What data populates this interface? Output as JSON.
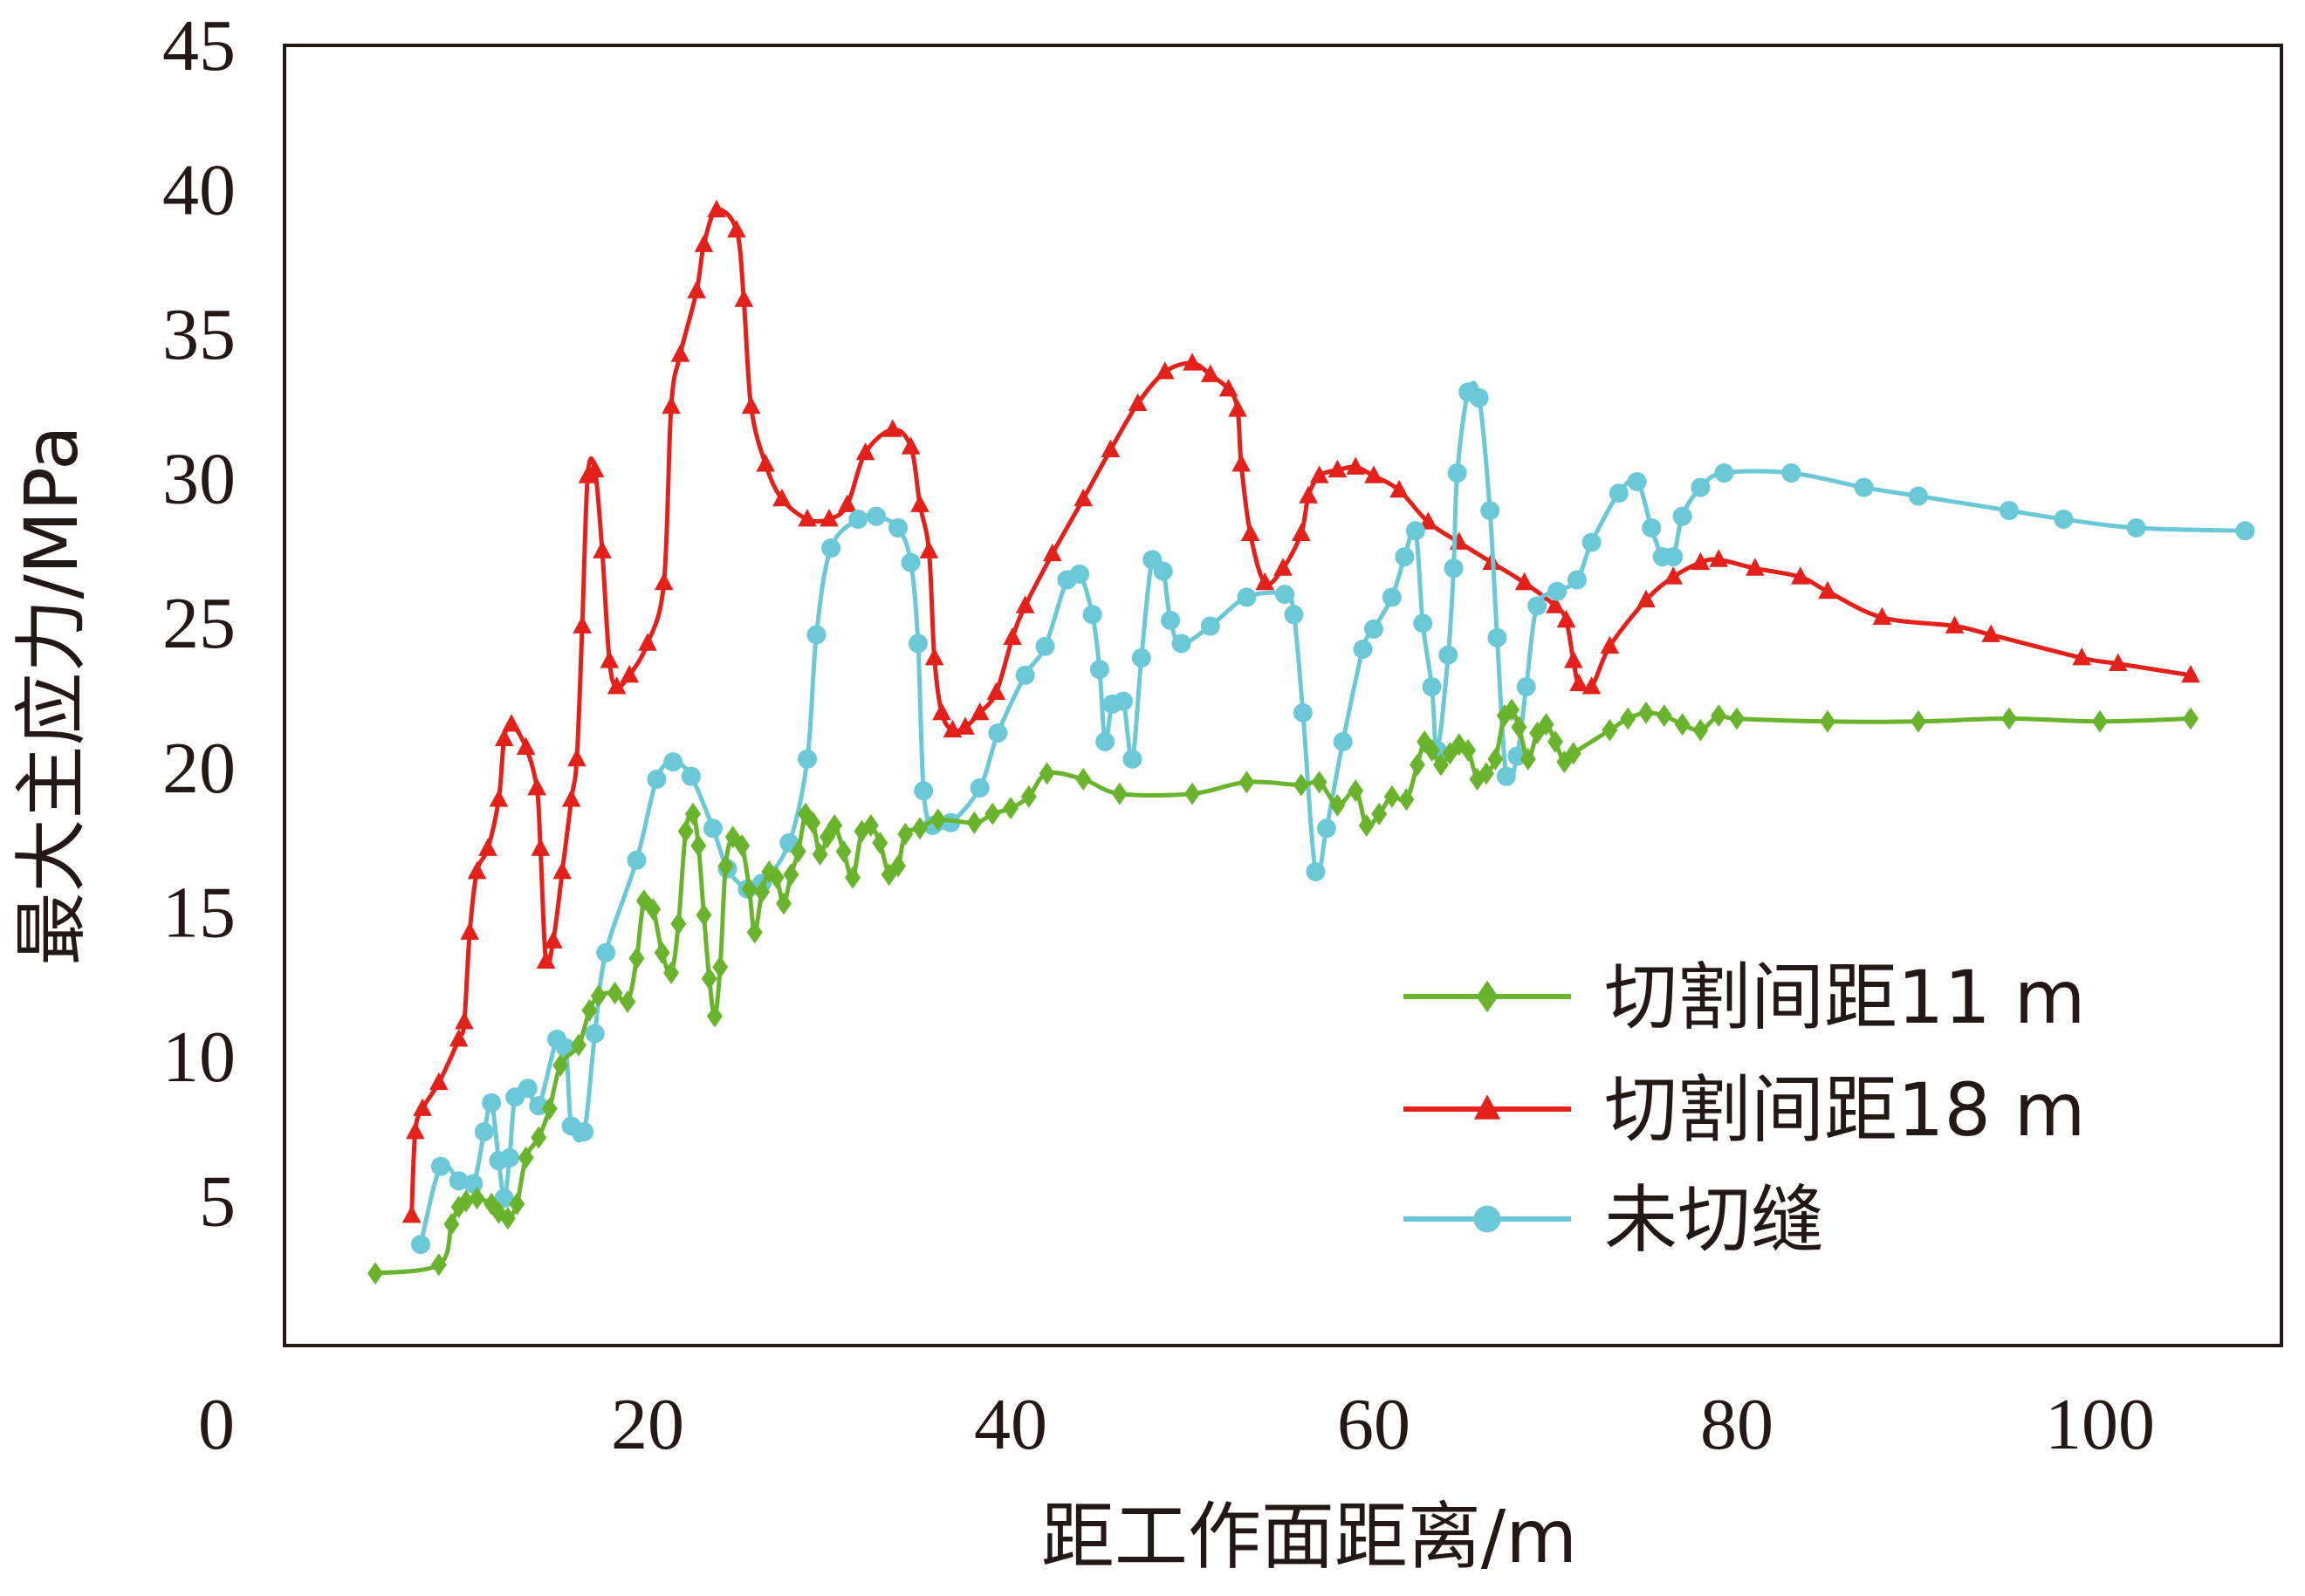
{
  "chart_data": {
    "type": "line",
    "title": "",
    "xlabel": "距工作面距离/m",
    "ylabel": "最大主应力/MPa",
    "xlim": [
      0,
      110
    ],
    "ylim": [
      0,
      45
    ],
    "x_ticks": [
      0,
      20,
      40,
      60,
      80,
      100
    ],
    "y_ticks": [
      5,
      10,
      15,
      20,
      25,
      30,
      35,
      40,
      45
    ],
    "grid": false,
    "legend_position": "lower-right",
    "series": [
      {
        "name": "切割间距11 m",
        "color": "#6ab42d",
        "marker": "diamond",
        "points": [
          [
            5,
            2.5
          ],
          [
            8.5,
            2.8
          ],
          [
            9.2,
            4.2
          ],
          [
            9.6,
            4.8
          ],
          [
            10,
            5.0
          ],
          [
            10.6,
            5.1
          ],
          [
            11.4,
            4.9
          ],
          [
            11.8,
            4.6
          ],
          [
            12.3,
            4.4
          ],
          [
            12.8,
            4.9
          ],
          [
            13.3,
            6.5
          ],
          [
            14,
            7.2
          ],
          [
            14.6,
            8.2
          ],
          [
            15.2,
            9.7
          ],
          [
            16.2,
            10.4
          ],
          [
            16.8,
            11.6
          ],
          [
            17.3,
            12.1
          ],
          [
            18.2,
            12.2
          ],
          [
            18.9,
            11.9
          ],
          [
            19.4,
            13.4
          ],
          [
            19.8,
            15.4
          ],
          [
            20.3,
            15.1
          ],
          [
            20.8,
            13.6
          ],
          [
            21.3,
            12.9
          ],
          [
            21.7,
            14.6
          ],
          [
            22.1,
            17.8
          ],
          [
            22.5,
            18.4
          ],
          [
            22.8,
            17.3
          ],
          [
            23.1,
            14.9
          ],
          [
            23.4,
            12.7
          ],
          [
            23.7,
            11.4
          ],
          [
            24,
            13.1
          ],
          [
            24.3,
            16.6
          ],
          [
            24.7,
            17.6
          ],
          [
            25.2,
            17.3
          ],
          [
            25.6,
            15.8
          ],
          [
            25.9,
            14.3
          ],
          [
            26.3,
            15.7
          ],
          [
            26.7,
            16.4
          ],
          [
            27.1,
            16.2
          ],
          [
            27.5,
            15.3
          ],
          [
            27.9,
            16.3
          ],
          [
            28.3,
            17.1
          ],
          [
            28.7,
            18.4
          ],
          [
            29.1,
            18.1
          ],
          [
            29.5,
            17.0
          ],
          [
            29.9,
            17.6
          ],
          [
            30.3,
            18.0
          ],
          [
            30.8,
            17.1
          ],
          [
            31.3,
            16.2
          ],
          [
            31.8,
            17.8
          ],
          [
            32.3,
            18.0
          ],
          [
            32.8,
            17.4
          ],
          [
            33.3,
            16.3
          ],
          [
            33.8,
            16.6
          ],
          [
            34.2,
            17.7
          ],
          [
            35,
            17.9
          ],
          [
            36,
            18.2
          ],
          [
            38,
            18.1
          ],
          [
            39,
            18.4
          ],
          [
            40,
            18.6
          ],
          [
            41,
            19.0
          ],
          [
            42,
            19.8
          ],
          [
            44,
            19.6
          ],
          [
            46,
            19.1
          ],
          [
            50,
            19.1
          ],
          [
            53,
            19.5
          ],
          [
            56,
            19.4
          ],
          [
            57,
            19.5
          ],
          [
            58,
            18.7
          ],
          [
            59,
            19.2
          ],
          [
            59.6,
            18.0
          ],
          [
            60.3,
            18.4
          ],
          [
            61,
            19.0
          ],
          [
            61.8,
            18.9
          ],
          [
            62.4,
            20.1
          ],
          [
            62.8,
            20.9
          ],
          [
            63.2,
            20.6
          ],
          [
            63.7,
            20.1
          ],
          [
            64.2,
            20.5
          ],
          [
            64.7,
            20.8
          ],
          [
            65.2,
            20.6
          ],
          [
            65.7,
            19.6
          ],
          [
            66.2,
            19.8
          ],
          [
            66.7,
            20.3
          ],
          [
            67.2,
            21.8
          ],
          [
            67.6,
            22.0
          ],
          [
            68.0,
            21.4
          ],
          [
            68.5,
            20.3
          ],
          [
            69,
            21.2
          ],
          [
            69.5,
            21.5
          ],
          [
            70,
            20.9
          ],
          [
            70.5,
            20.2
          ],
          [
            71,
            20.5
          ],
          [
            73,
            21.3
          ],
          [
            74,
            21.7
          ],
          [
            75,
            21.9
          ],
          [
            76,
            21.8
          ],
          [
            77,
            21.5
          ],
          [
            78,
            21.3
          ],
          [
            79,
            21.8
          ],
          [
            80,
            21.7
          ],
          [
            85,
            21.6
          ],
          [
            90,
            21.6
          ],
          [
            95,
            21.7
          ],
          [
            100,
            21.6
          ],
          [
            105,
            21.7
          ]
        ]
      },
      {
        "name": "切割间距18 m",
        "color": "#e4201b",
        "marker": "triangle",
        "points": [
          [
            7,
            4.5
          ],
          [
            7.2,
            7.4
          ],
          [
            7.6,
            8.2
          ],
          [
            8.5,
            9.1
          ],
          [
            9.6,
            10.6
          ],
          [
            9.9,
            11.2
          ],
          [
            10.2,
            14.3
          ],
          [
            10.6,
            16.4
          ],
          [
            11.2,
            17.2
          ],
          [
            11.8,
            18.9
          ],
          [
            12.1,
            21.0
          ],
          [
            12.5,
            21.5
          ],
          [
            13.3,
            20.7
          ],
          [
            13.9,
            19.3
          ],
          [
            14.1,
            17.2
          ],
          [
            14.4,
            13.3
          ],
          [
            14.8,
            14.0
          ],
          [
            15.3,
            16.4
          ],
          [
            15.8,
            18.9
          ],
          [
            16.1,
            20.3
          ],
          [
            16.4,
            24.9
          ],
          [
            16.7,
            30.1
          ],
          [
            17.1,
            30.3
          ],
          [
            17.5,
            27.5
          ],
          [
            17.9,
            23.7
          ],
          [
            18.3,
            22.8
          ],
          [
            19,
            23.2
          ],
          [
            20,
            24.3
          ],
          [
            20.9,
            26.4
          ],
          [
            21.3,
            32.5
          ],
          [
            21.8,
            34.3
          ],
          [
            22.7,
            36.5
          ],
          [
            23.1,
            38.1
          ],
          [
            23.8,
            39.3
          ],
          [
            24.9,
            38.6
          ],
          [
            25.3,
            36.2
          ],
          [
            25.7,
            32.5
          ],
          [
            26.5,
            30.5
          ],
          [
            27.4,
            29.3
          ],
          [
            28.8,
            28.6
          ],
          [
            30,
            28.6
          ],
          [
            31,
            29.1
          ],
          [
            32,
            30.9
          ],
          [
            33.5,
            31.7
          ],
          [
            34.5,
            31.1
          ],
          [
            35,
            29.1
          ],
          [
            35.5,
            27.5
          ],
          [
            35.8,
            23.8
          ],
          [
            36.2,
            21.9
          ],
          [
            36.8,
            21.3
          ],
          [
            37.5,
            21.4
          ],
          [
            38.3,
            21.9
          ],
          [
            39.2,
            22.6
          ],
          [
            40.1,
            24.5
          ],
          [
            40.8,
            25.6
          ],
          [
            42.3,
            27.4
          ],
          [
            44,
            29.3
          ],
          [
            45.5,
            31.0
          ],
          [
            47,
            32.6
          ],
          [
            48.5,
            33.7
          ],
          [
            50,
            34.0
          ],
          [
            51,
            33.6
          ],
          [
            52,
            33.1
          ],
          [
            52.5,
            32.4
          ],
          [
            52.7,
            30.5
          ],
          [
            53.2,
            28.1
          ],
          [
            54,
            26.4
          ],
          [
            55,
            26.9
          ],
          [
            56,
            28.1
          ],
          [
            56.4,
            29.4
          ],
          [
            57,
            30.1
          ],
          [
            58,
            30.3
          ],
          [
            59,
            30.4
          ],
          [
            60,
            30.1
          ],
          [
            61.4,
            29.6
          ],
          [
            63,
            28.5
          ],
          [
            64.7,
            27.8
          ],
          [
            66.5,
            27.1
          ],
          [
            68.3,
            26.4
          ],
          [
            70,
            25.6
          ],
          [
            70.6,
            25.1
          ],
          [
            71,
            23.7
          ],
          [
            71.3,
            22.9
          ],
          [
            72,
            22.8
          ],
          [
            73,
            24.2
          ],
          [
            75,
            25.8
          ],
          [
            76.5,
            26.6
          ],
          [
            78,
            27.1
          ],
          [
            79,
            27.2
          ],
          [
            81,
            26.9
          ],
          [
            83.5,
            26.6
          ],
          [
            85,
            26.1
          ],
          [
            88,
            25.2
          ],
          [
            92,
            24.9
          ],
          [
            94,
            24.6
          ],
          [
            99,
            23.8
          ],
          [
            101,
            23.6
          ],
          [
            105,
            23.2
          ]
        ]
      },
      {
        "name": "未切缝",
        "color": "#6ac8d7",
        "marker": "circle",
        "points": [
          [
            7.5,
            3.5
          ],
          [
            8.6,
            6.2
          ],
          [
            9.6,
            5.7
          ],
          [
            10.4,
            5.6
          ],
          [
            11,
            7.4
          ],
          [
            11.4,
            8.4
          ],
          [
            11.8,
            6.4
          ],
          [
            12.1,
            5.1
          ],
          [
            12.4,
            6.5
          ],
          [
            12.7,
            8.6
          ],
          [
            13.4,
            8.9
          ],
          [
            14,
            8.3
          ],
          [
            15,
            10.6
          ],
          [
            15.5,
            10.3
          ],
          [
            15.8,
            7.6
          ],
          [
            16.5,
            7.4
          ],
          [
            17.1,
            10.8
          ],
          [
            17.7,
            13.6
          ],
          [
            19.4,
            16.8
          ],
          [
            20.5,
            19.6
          ],
          [
            21.4,
            20.2
          ],
          [
            22.4,
            19.7
          ],
          [
            23.6,
            17.9
          ],
          [
            24.4,
            16.5
          ],
          [
            25.5,
            15.8
          ],
          [
            26.3,
            16.0
          ],
          [
            27.8,
            17.4
          ],
          [
            28.8,
            20.3
          ],
          [
            29.3,
            24.6
          ],
          [
            30.1,
            27.6
          ],
          [
            31.6,
            28.6
          ],
          [
            32.6,
            28.7
          ],
          [
            33.8,
            28.3
          ],
          [
            34.5,
            27.1
          ],
          [
            34.9,
            24.3
          ],
          [
            35.2,
            19.2
          ],
          [
            35.7,
            18.0
          ],
          [
            36.7,
            18.1
          ],
          [
            38.3,
            19.3
          ],
          [
            39.3,
            21.2
          ],
          [
            40.8,
            23.2
          ],
          [
            41.9,
            24.2
          ],
          [
            43.1,
            26.5
          ],
          [
            43.8,
            26.7
          ],
          [
            44.5,
            25.3
          ],
          [
            44.9,
            23.4
          ],
          [
            45.2,
            20.9
          ],
          [
            45.6,
            22.2
          ],
          [
            46.2,
            22.3
          ],
          [
            46.7,
            20.3
          ],
          [
            47.2,
            23.8
          ],
          [
            47.8,
            27.2
          ],
          [
            48.4,
            26.8
          ],
          [
            48.8,
            25.1
          ],
          [
            49.4,
            24.3
          ],
          [
            51,
            24.9
          ],
          [
            53,
            25.9
          ],
          [
            55.1,
            26.0
          ],
          [
            55.6,
            25.3
          ],
          [
            56.1,
            21.9
          ],
          [
            56.8,
            16.4
          ],
          [
            57.4,
            17.9
          ],
          [
            58.3,
            20.9
          ],
          [
            59.4,
            24.1
          ],
          [
            60,
            24.8
          ],
          [
            61,
            25.9
          ],
          [
            61.7,
            27.3
          ],
          [
            62.3,
            28.2
          ],
          [
            62.7,
            25.0
          ],
          [
            63.2,
            22.8
          ],
          [
            63.5,
            20.6
          ],
          [
            64.1,
            23.9
          ],
          [
            64.4,
            26.9
          ],
          [
            64.6,
            30.2
          ],
          [
            65.2,
            33.0
          ],
          [
            65.8,
            32.8
          ],
          [
            66.4,
            28.9
          ],
          [
            66.8,
            24.5
          ],
          [
            67.3,
            19.7
          ],
          [
            67.9,
            20.4
          ],
          [
            68.4,
            22.8
          ],
          [
            69,
            25.6
          ],
          [
            70.1,
            26.1
          ],
          [
            71.2,
            26.5
          ],
          [
            72,
            27.8
          ],
          [
            73.5,
            29.5
          ],
          [
            74.5,
            29.9
          ],
          [
            75.3,
            28.3
          ],
          [
            75.9,
            27.3
          ],
          [
            76.5,
            27.3
          ],
          [
            77,
            28.7
          ],
          [
            78,
            29.7
          ],
          [
            79.3,
            30.2
          ],
          [
            83,
            30.2
          ],
          [
            87,
            29.7
          ],
          [
            90,
            29.4
          ],
          [
            95,
            28.9
          ],
          [
            98,
            28.6
          ],
          [
            102,
            28.3
          ],
          [
            108,
            28.2
          ]
        ]
      }
    ]
  }
}
